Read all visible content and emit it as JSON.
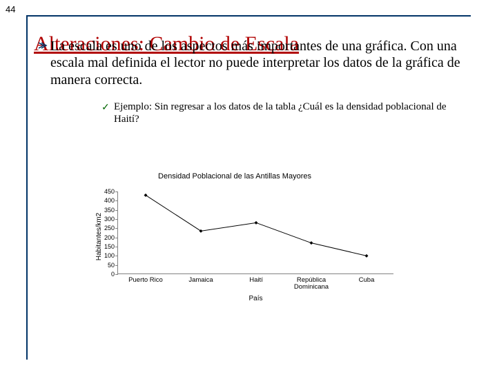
{
  "slide_number": "44",
  "title": "Alteraciones:  Cambio de Escala",
  "body_text": "La  escala es uno de los aspectos más importantes de una gráfica.  Con una escala mal definida el lector no puede interpretar los datos de la gráfica de manera correcta.",
  "sub_text": "Ejemplo:  Sin regresar a los datos de la tabla ¿Cuál es la densidad poblacional de Haití?",
  "chart": {
    "type": "line",
    "title": "Densidad Poblacional de las Antillas Mayores",
    "ylabel": "Habitantes/km2",
    "xlabel": "País",
    "ylim": [
      0,
      450
    ],
    "ytick_step": 50,
    "yticks": [
      0,
      50,
      100,
      150,
      200,
      250,
      300,
      350,
      400,
      450
    ],
    "categories": [
      "Puerto Rico",
      "Jamaica",
      "Haití",
      "República\nDominicana",
      "Cuba"
    ],
    "values": [
      430,
      235,
      280,
      170,
      100
    ],
    "line_color": "#000000",
    "marker_color": "#000000",
    "marker_shape": "diamond",
    "marker_size": 5,
    "line_width": 1,
    "axis_color": "#808080",
    "background_color": "#ffffff",
    "title_fontsize": 11,
    "label_fontsize": 10,
    "tick_fontsize": 9
  },
  "colors": {
    "title_red": "#b00000",
    "frame_blue": "#003366",
    "check_green": "#006600"
  }
}
